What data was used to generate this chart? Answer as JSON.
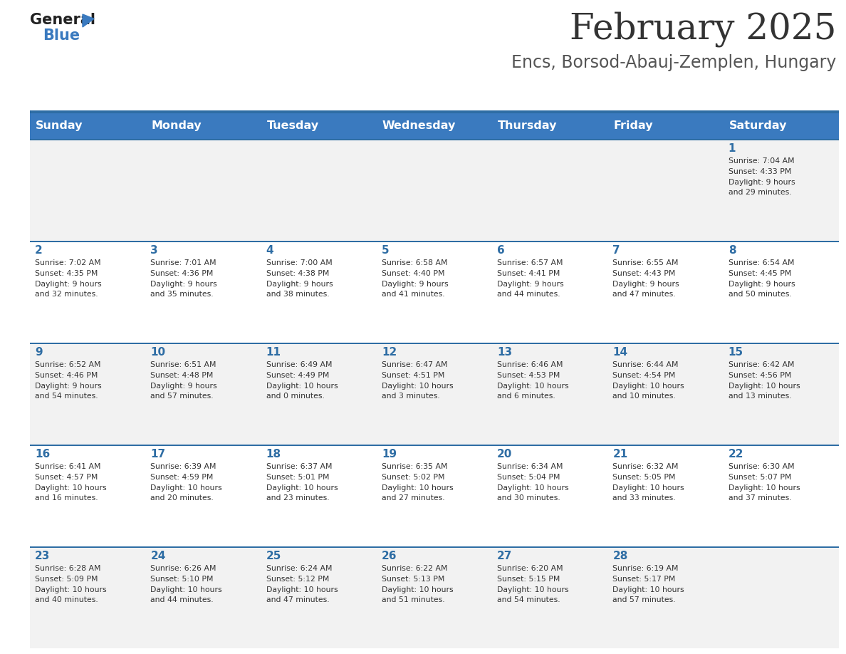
{
  "title": "February 2025",
  "subtitle": "Encs, Borsod-Abauj-Zemplen, Hungary",
  "days_of_week": [
    "Sunday",
    "Monday",
    "Tuesday",
    "Wednesday",
    "Thursday",
    "Friday",
    "Saturday"
  ],
  "header_bg": "#3a7abf",
  "header_text": "#ffffff",
  "row0_bg": "#f2f2f2",
  "row1_bg": "#ffffff",
  "separator_color": "#2e6da4",
  "title_color": "#333333",
  "subtitle_color": "#555555",
  "cell_text_color": "#333333",
  "day_number_color": "#2e6da4",
  "calendar_data": [
    [
      {
        "day": null,
        "text": ""
      },
      {
        "day": null,
        "text": ""
      },
      {
        "day": null,
        "text": ""
      },
      {
        "day": null,
        "text": ""
      },
      {
        "day": null,
        "text": ""
      },
      {
        "day": null,
        "text": ""
      },
      {
        "day": 1,
        "text": "Sunrise: 7:04 AM\nSunset: 4:33 PM\nDaylight: 9 hours\nand 29 minutes."
      }
    ],
    [
      {
        "day": 2,
        "text": "Sunrise: 7:02 AM\nSunset: 4:35 PM\nDaylight: 9 hours\nand 32 minutes."
      },
      {
        "day": 3,
        "text": "Sunrise: 7:01 AM\nSunset: 4:36 PM\nDaylight: 9 hours\nand 35 minutes."
      },
      {
        "day": 4,
        "text": "Sunrise: 7:00 AM\nSunset: 4:38 PM\nDaylight: 9 hours\nand 38 minutes."
      },
      {
        "day": 5,
        "text": "Sunrise: 6:58 AM\nSunset: 4:40 PM\nDaylight: 9 hours\nand 41 minutes."
      },
      {
        "day": 6,
        "text": "Sunrise: 6:57 AM\nSunset: 4:41 PM\nDaylight: 9 hours\nand 44 minutes."
      },
      {
        "day": 7,
        "text": "Sunrise: 6:55 AM\nSunset: 4:43 PM\nDaylight: 9 hours\nand 47 minutes."
      },
      {
        "day": 8,
        "text": "Sunrise: 6:54 AM\nSunset: 4:45 PM\nDaylight: 9 hours\nand 50 minutes."
      }
    ],
    [
      {
        "day": 9,
        "text": "Sunrise: 6:52 AM\nSunset: 4:46 PM\nDaylight: 9 hours\nand 54 minutes."
      },
      {
        "day": 10,
        "text": "Sunrise: 6:51 AM\nSunset: 4:48 PM\nDaylight: 9 hours\nand 57 minutes."
      },
      {
        "day": 11,
        "text": "Sunrise: 6:49 AM\nSunset: 4:49 PM\nDaylight: 10 hours\nand 0 minutes."
      },
      {
        "day": 12,
        "text": "Sunrise: 6:47 AM\nSunset: 4:51 PM\nDaylight: 10 hours\nand 3 minutes."
      },
      {
        "day": 13,
        "text": "Sunrise: 6:46 AM\nSunset: 4:53 PM\nDaylight: 10 hours\nand 6 minutes."
      },
      {
        "day": 14,
        "text": "Sunrise: 6:44 AM\nSunset: 4:54 PM\nDaylight: 10 hours\nand 10 minutes."
      },
      {
        "day": 15,
        "text": "Sunrise: 6:42 AM\nSunset: 4:56 PM\nDaylight: 10 hours\nand 13 minutes."
      }
    ],
    [
      {
        "day": 16,
        "text": "Sunrise: 6:41 AM\nSunset: 4:57 PM\nDaylight: 10 hours\nand 16 minutes."
      },
      {
        "day": 17,
        "text": "Sunrise: 6:39 AM\nSunset: 4:59 PM\nDaylight: 10 hours\nand 20 minutes."
      },
      {
        "day": 18,
        "text": "Sunrise: 6:37 AM\nSunset: 5:01 PM\nDaylight: 10 hours\nand 23 minutes."
      },
      {
        "day": 19,
        "text": "Sunrise: 6:35 AM\nSunset: 5:02 PM\nDaylight: 10 hours\nand 27 minutes."
      },
      {
        "day": 20,
        "text": "Sunrise: 6:34 AM\nSunset: 5:04 PM\nDaylight: 10 hours\nand 30 minutes."
      },
      {
        "day": 21,
        "text": "Sunrise: 6:32 AM\nSunset: 5:05 PM\nDaylight: 10 hours\nand 33 minutes."
      },
      {
        "day": 22,
        "text": "Sunrise: 6:30 AM\nSunset: 5:07 PM\nDaylight: 10 hours\nand 37 minutes."
      }
    ],
    [
      {
        "day": 23,
        "text": "Sunrise: 6:28 AM\nSunset: 5:09 PM\nDaylight: 10 hours\nand 40 minutes."
      },
      {
        "day": 24,
        "text": "Sunrise: 6:26 AM\nSunset: 5:10 PM\nDaylight: 10 hours\nand 44 minutes."
      },
      {
        "day": 25,
        "text": "Sunrise: 6:24 AM\nSunset: 5:12 PM\nDaylight: 10 hours\nand 47 minutes."
      },
      {
        "day": 26,
        "text": "Sunrise: 6:22 AM\nSunset: 5:13 PM\nDaylight: 10 hours\nand 51 minutes."
      },
      {
        "day": 27,
        "text": "Sunrise: 6:20 AM\nSunset: 5:15 PM\nDaylight: 10 hours\nand 54 minutes."
      },
      {
        "day": 28,
        "text": "Sunrise: 6:19 AM\nSunset: 5:17 PM\nDaylight: 10 hours\nand 57 minutes."
      },
      {
        "day": null,
        "text": ""
      }
    ]
  ]
}
